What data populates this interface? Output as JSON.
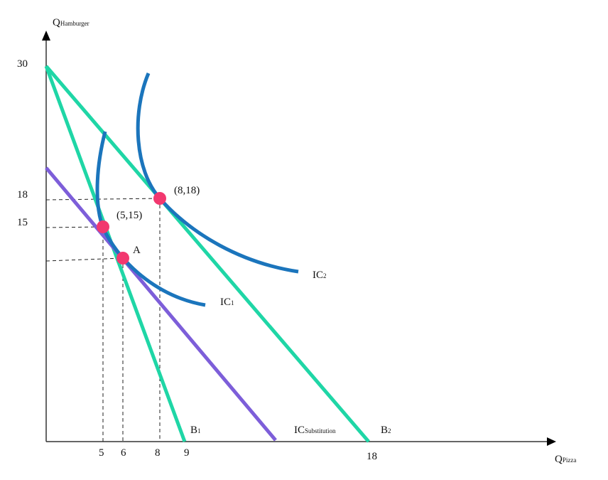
{
  "axes": {
    "y_label_main": "Q",
    "y_label_sub": "Hamburger",
    "x_label_main": "Q",
    "x_label_sub": "Pizza",
    "y_ticks": [
      "30",
      "18",
      "15"
    ],
    "x_ticks": [
      "5",
      "6",
      "8",
      "9",
      "18"
    ]
  },
  "curves": {
    "b1_main": "B",
    "b1_sub": "1",
    "b2_main": "B",
    "b2_sub": "2",
    "ic1_main": "IC",
    "ic1_sub": "1",
    "ic2_main": "IC",
    "ic2_sub": "2",
    "ics_main": "IC",
    "ics_sub": "Substitution"
  },
  "points": {
    "p1": "(8,18)",
    "p2": "(5,15)",
    "p3": "A"
  },
  "colors": {
    "budget": "#1fd6a6",
    "indifference": "#1b75bc",
    "substitution": "#7d5ed9",
    "point": "#f2386f"
  }
}
